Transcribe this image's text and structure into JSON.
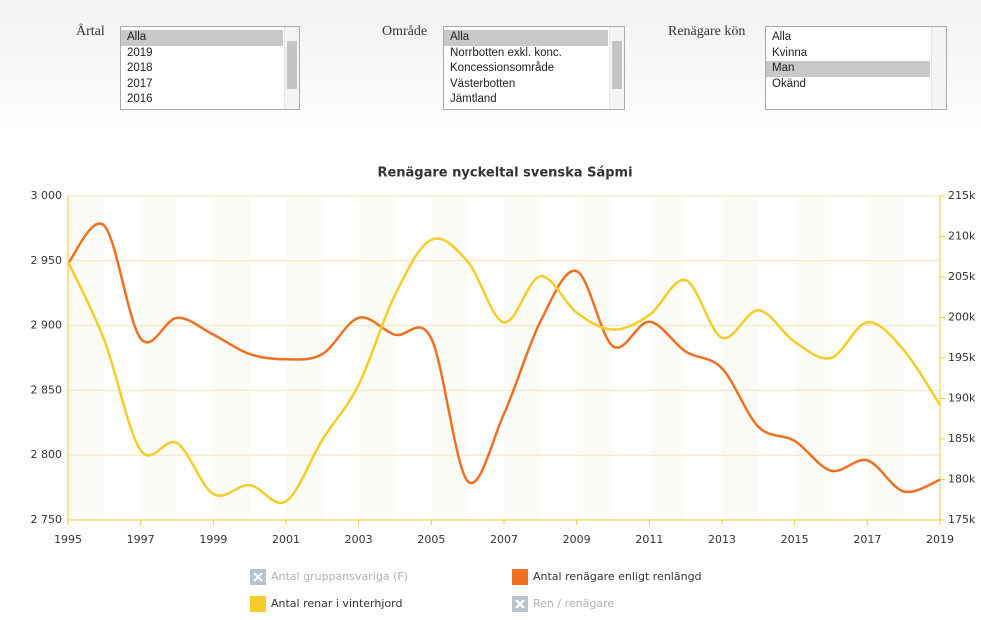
{
  "filters": [
    {
      "label": "Årtal",
      "items": [
        "Alla",
        "2019",
        "2018",
        "2017",
        "2016"
      ],
      "selected": 0
    },
    {
      "label": "Område",
      "items": [
        "Alla",
        "Norrbotten exkl. konc.",
        "Koncessionsområde",
        "Västerbotten",
        "Jämtland"
      ],
      "selected": 0
    },
    {
      "label": "Renägare kön",
      "items": [
        "Alla",
        "Kvinna",
        "Man",
        "Okänd"
      ],
      "selected": 2
    }
  ],
  "chart_data": {
    "type": "line",
    "title": "Renägare nyckeltal svenska Sápmi",
    "x": [
      1995,
      1996,
      1997,
      1998,
      1999,
      2000,
      2001,
      2002,
      2003,
      2004,
      2005,
      2006,
      2007,
      2008,
      2009,
      2010,
      2011,
      2012,
      2013,
      2014,
      2015,
      2016,
      2017,
      2018,
      2019
    ],
    "xlim": [
      1995,
      2019
    ],
    "xticks": [
      1995,
      1997,
      1999,
      2001,
      2003,
      2005,
      2007,
      2009,
      2011,
      2013,
      2015,
      2017,
      2019
    ],
    "ylim": [
      2750,
      3000
    ],
    "yticks": [
      {
        "value": 2750,
        "label": "2 750"
      },
      {
        "value": 2800,
        "label": "2 800"
      },
      {
        "value": 2850,
        "label": "2 850"
      },
      {
        "value": 2900,
        "label": "2 900"
      },
      {
        "value": 2950,
        "label": "2 950"
      },
      {
        "value": 3000,
        "label": "3 000"
      }
    ],
    "y2lim": [
      175000,
      215000
    ],
    "y2ticks": [
      {
        "value": 175000,
        "label": "175k"
      },
      {
        "value": 180000,
        "label": "180k"
      },
      {
        "value": 185000,
        "label": "185k"
      },
      {
        "value": 190000,
        "label": "190k"
      },
      {
        "value": 195000,
        "label": "195k"
      },
      {
        "value": 200000,
        "label": "200k"
      },
      {
        "value": 205000,
        "label": "205k"
      },
      {
        "value": 210000,
        "label": "210k"
      },
      {
        "value": 215000,
        "label": "215k"
      }
    ],
    "grid": true,
    "series": [
      {
        "name": "Antal renägare enligt renlängd",
        "color": "#f07022",
        "axis": "y",
        "values": [
          2948,
          2977,
          2890,
          2906,
          2893,
          2878,
          2874,
          2878,
          2906,
          2893,
          2890,
          2780,
          2832,
          2903,
          2942,
          2884,
          2903,
          2880,
          2867,
          2822,
          2811,
          2788,
          2796,
          2772,
          2781
        ]
      },
      {
        "name": "Antal renar i vinterhjord",
        "color": "#f5cc2a",
        "axis": "y2",
        "values": [
          206900,
          197200,
          183600,
          184500,
          178200,
          179300,
          177300,
          184900,
          191700,
          202800,
          209600,
          206900,
          199400,
          205100,
          200600,
          198500,
          200300,
          204600,
          197500,
          200900,
          197000,
          195000,
          199400,
          196000,
          189200
        ]
      },
      {
        "name": "Antal gruppansvariga (F)",
        "visible": false
      },
      {
        "name": "Ren / renägare",
        "visible": false
      }
    ]
  }
}
